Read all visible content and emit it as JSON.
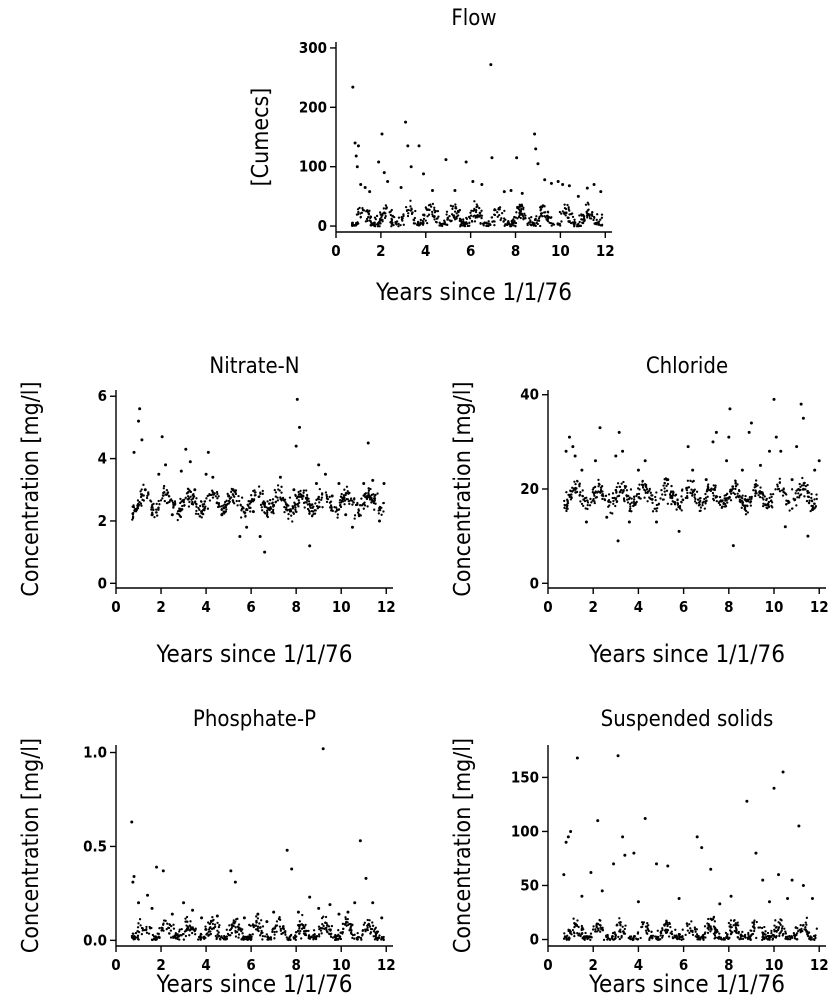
{
  "chart_data": [
    {
      "type": "scatter",
      "title": "Flow",
      "xlabel": "Years since 1/1/76",
      "ylabel": "[Cumecs]",
      "xlim": [
        0,
        12.3
      ],
      "ylim": [
        -10,
        310
      ],
      "xticks": [
        0,
        2,
        4,
        6,
        8,
        10,
        12
      ],
      "yticks": [
        0,
        100,
        200,
        300
      ],
      "baseline": 12,
      "series": [
        {
          "values": [
            [
              0.75,
              234
            ],
            [
              0.85,
              140
            ],
            [
              0.9,
              118
            ],
            [
              1.0,
              135
            ],
            [
              0.95,
              100
            ],
            [
              1.1,
              70
            ],
            [
              1.3,
              65
            ],
            [
              1.5,
              58
            ],
            [
              1.9,
              108
            ],
            [
              2.05,
              155
            ],
            [
              2.15,
              90
            ],
            [
              2.3,
              75
            ],
            [
              2.9,
              65
            ],
            [
              3.1,
              175
            ],
            [
              3.2,
              135
            ],
            [
              3.35,
              100
            ],
            [
              3.7,
              135
            ],
            [
              3.9,
              88
            ],
            [
              4.3,
              60
            ],
            [
              4.9,
              112
            ],
            [
              5.3,
              60
            ],
            [
              5.8,
              108
            ],
            [
              6.1,
              75
            ],
            [
              6.5,
              70
            ],
            [
              6.9,
              272
            ],
            [
              6.95,
              115
            ],
            [
              7.5,
              58
            ],
            [
              7.8,
              60
            ],
            [
              8.05,
              115
            ],
            [
              8.3,
              55
            ],
            [
              8.85,
              155
            ],
            [
              8.9,
              130
            ],
            [
              9.0,
              105
            ],
            [
              9.3,
              78
            ],
            [
              9.6,
              72
            ],
            [
              9.9,
              75
            ],
            [
              10.1,
              70
            ],
            [
              10.4,
              68
            ],
            [
              10.8,
              50
            ],
            [
              11.2,
              64
            ],
            [
              11.5,
              70
            ],
            [
              11.8,
              58
            ]
          ]
        }
      ]
    },
    {
      "type": "scatter",
      "title": "Nitrate-N",
      "xlabel": "Years since 1/1/76",
      "ylabel": "Concentration [mg/l]",
      "xlim": [
        0,
        12.3
      ],
      "ylim": [
        -0.15,
        6.2
      ],
      "xticks": [
        0,
        2,
        4,
        6,
        8,
        10,
        12
      ],
      "yticks": [
        0,
        2,
        4,
        6
      ],
      "baseline": 2.6,
      "series": [
        {
          "values": [
            [
              0.8,
              4.2
            ],
            [
              1.0,
              5.2
            ],
            [
              1.05,
              5.6
            ],
            [
              1.15,
              4.6
            ],
            [
              1.3,
              3.0
            ],
            [
              1.6,
              2.2
            ],
            [
              1.9,
              3.5
            ],
            [
              2.05,
              4.7
            ],
            [
              2.2,
              3.8
            ],
            [
              2.5,
              2.2
            ],
            [
              2.9,
              3.6
            ],
            [
              3.1,
              4.3
            ],
            [
              3.3,
              3.9
            ],
            [
              3.5,
              3.0
            ],
            [
              3.8,
              2.3
            ],
            [
              4.0,
              3.5
            ],
            [
              4.1,
              4.2
            ],
            [
              4.3,
              3.4
            ],
            [
              4.7,
              2.2
            ],
            [
              5.0,
              2.8
            ],
            [
              5.2,
              3.0
            ],
            [
              5.5,
              1.5
            ],
            [
              5.8,
              1.8
            ],
            [
              6.1,
              2.3
            ],
            [
              6.4,
              1.5
            ],
            [
              6.6,
              1.0
            ],
            [
              7.0,
              2.5
            ],
            [
              7.3,
              3.4
            ],
            [
              7.6,
              2.5
            ],
            [
              7.9,
              3.0
            ],
            [
              8.0,
              4.4
            ],
            [
              8.05,
              5.9
            ],
            [
              8.15,
              5.0
            ],
            [
              8.3,
              2.8
            ],
            [
              8.6,
              1.2
            ],
            [
              8.9,
              3.2
            ],
            [
              9.0,
              3.8
            ],
            [
              9.3,
              3.5
            ],
            [
              9.6,
              2.8
            ],
            [
              9.9,
              3.2
            ],
            [
              10.2,
              2.2
            ],
            [
              10.5,
              1.8
            ],
            [
              10.8,
              2.2
            ],
            [
              11.0,
              3.2
            ],
            [
              11.2,
              4.5
            ],
            [
              11.4,
              3.3
            ],
            [
              11.7,
              2.0
            ],
            [
              11.9,
              3.2
            ]
          ]
        }
      ]
    },
    {
      "type": "scatter",
      "title": "Chloride",
      "xlabel": "Years since 1/1/76",
      "ylabel": "Concentration [mg/l]",
      "xlim": [
        0,
        12.3
      ],
      "ylim": [
        -1,
        41
      ],
      "xticks": [
        0,
        2,
        4,
        6,
        8,
        10,
        12
      ],
      "yticks": [
        0,
        20,
        40
      ],
      "baseline": 18.5,
      "series": [
        {
          "values": [
            [
              0.8,
              28
            ],
            [
              0.95,
              31
            ],
            [
              1.1,
              29
            ],
            [
              1.2,
              27
            ],
            [
              1.5,
              24
            ],
            [
              1.7,
              13
            ],
            [
              2.1,
              26
            ],
            [
              2.3,
              33
            ],
            [
              2.6,
              14
            ],
            [
              3.0,
              27
            ],
            [
              3.15,
              32
            ],
            [
              3.3,
              28
            ],
            [
              3.1,
              9
            ],
            [
              3.6,
              13
            ],
            [
              4.0,
              24
            ],
            [
              4.3,
              26
            ],
            [
              4.8,
              13
            ],
            [
              5.3,
              22
            ],
            [
              5.8,
              11
            ],
            [
              6.2,
              29
            ],
            [
              6.4,
              24
            ],
            [
              7.0,
              22
            ],
            [
              7.3,
              30
            ],
            [
              7.45,
              32
            ],
            [
              7.9,
              26
            ],
            [
              8.0,
              31
            ],
            [
              8.05,
              37
            ],
            [
              8.2,
              8
            ],
            [
              8.6,
              24
            ],
            [
              8.9,
              32
            ],
            [
              9.0,
              34
            ],
            [
              9.4,
              25
            ],
            [
              9.8,
              28
            ],
            [
              10.0,
              39
            ],
            [
              10.1,
              31
            ],
            [
              10.3,
              28
            ],
            [
              10.5,
              12
            ],
            [
              10.8,
              22
            ],
            [
              11.0,
              29
            ],
            [
              11.2,
              38
            ],
            [
              11.3,
              35
            ],
            [
              11.5,
              10
            ],
            [
              11.8,
              24
            ],
            [
              12.0,
              26
            ]
          ]
        }
      ]
    },
    {
      "type": "scatter",
      "title": "Phosphate-P",
      "xlabel": "Years since 1/1/76",
      "ylabel": "Concentration [mg/l]",
      "xlim": [
        0,
        12.3
      ],
      "ylim": [
        -0.03,
        1.04
      ],
      "xticks": [
        0,
        2,
        4,
        6,
        8,
        10,
        12
      ],
      "yticks": [
        0.0,
        0.5,
        1.0
      ],
      "baseline": 0.04,
      "series": [
        {
          "values": [
            [
              0.7,
              0.63
            ],
            [
              0.8,
              0.34
            ],
            [
              0.75,
              0.31
            ],
            [
              1.0,
              0.2
            ],
            [
              1.4,
              0.24
            ],
            [
              1.6,
              0.17
            ],
            [
              1.8,
              0.39
            ],
            [
              2.1,
              0.37
            ],
            [
              2.5,
              0.14
            ],
            [
              3.0,
              0.2
            ],
            [
              3.4,
              0.16
            ],
            [
              3.8,
              0.12
            ],
            [
              4.5,
              0.13
            ],
            [
              5.1,
              0.37
            ],
            [
              5.3,
              0.31
            ],
            [
              5.7,
              0.12
            ],
            [
              6.3,
              0.14
            ],
            [
              6.7,
              0.1
            ],
            [
              7.0,
              0.15
            ],
            [
              7.6,
              0.48
            ],
            [
              7.8,
              0.38
            ],
            [
              8.1,
              0.15
            ],
            [
              8.6,
              0.23
            ],
            [
              9.0,
              0.17
            ],
            [
              9.2,
              1.02
            ],
            [
              9.5,
              0.19
            ],
            [
              9.9,
              0.14
            ],
            [
              10.3,
              0.15
            ],
            [
              10.6,
              0.2
            ],
            [
              10.85,
              0.53
            ],
            [
              11.1,
              0.33
            ],
            [
              11.4,
              0.2
            ],
            [
              11.8,
              0.12
            ]
          ]
        }
      ]
    },
    {
      "type": "scatter",
      "title": "Suspended solids",
      "xlabel": "Years since 1/1/76",
      "ylabel": "Concentration [mg/l]",
      "xlim": [
        0,
        12.3
      ],
      "ylim": [
        -6,
        180
      ],
      "xticks": [
        0,
        2,
        4,
        6,
        8,
        10,
        12
      ],
      "yticks": [
        0,
        50,
        100,
        150
      ],
      "baseline": 5,
      "series": [
        {
          "values": [
            [
              0.7,
              60
            ],
            [
              0.8,
              90
            ],
            [
              0.9,
              95
            ],
            [
              1.0,
              100
            ],
            [
              1.3,
              168
            ],
            [
              1.5,
              40
            ],
            [
              1.9,
              62
            ],
            [
              2.2,
              110
            ],
            [
              2.4,
              45
            ],
            [
              2.9,
              70
            ],
            [
              3.1,
              170
            ],
            [
              3.3,
              95
            ],
            [
              3.4,
              78
            ],
            [
              3.8,
              80
            ],
            [
              4.0,
              35
            ],
            [
              4.3,
              112
            ],
            [
              4.8,
              70
            ],
            [
              5.3,
              68
            ],
            [
              5.8,
              38
            ],
            [
              6.6,
              95
            ],
            [
              6.8,
              85
            ],
            [
              7.2,
              65
            ],
            [
              7.6,
              33
            ],
            [
              8.1,
              40
            ],
            [
              8.8,
              128
            ],
            [
              9.2,
              80
            ],
            [
              9.5,
              55
            ],
            [
              9.8,
              35
            ],
            [
              10.0,
              140
            ],
            [
              10.2,
              60
            ],
            [
              10.4,
              155
            ],
            [
              10.6,
              38
            ],
            [
              10.8,
              55
            ],
            [
              11.1,
              105
            ],
            [
              11.3,
              50
            ],
            [
              11.7,
              38
            ]
          ]
        }
      ]
    }
  ]
}
